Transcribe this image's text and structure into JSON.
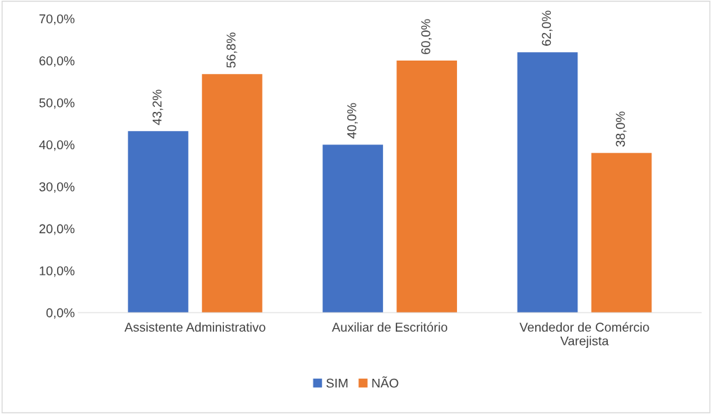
{
  "chart_data": {
    "type": "bar",
    "categories": [
      "Assistente Administrativo",
      "Auxiliar de Escritório",
      "Vendedor de Comércio\nVarejista"
    ],
    "series": [
      {
        "name": "SIM",
        "color": "#4472c4",
        "values": [
          43.2,
          40.0,
          62.0
        ],
        "value_labels": [
          "43,2%",
          "40,0%",
          "62,0%"
        ]
      },
      {
        "name": "NÃO",
        "color": "#ed7d31",
        "values": [
          56.8,
          60.0,
          38.0
        ],
        "value_labels": [
          "56,8%",
          "60,0%",
          "38,0%"
        ]
      }
    ],
    "ylim": [
      0,
      70
    ],
    "yticks": [
      {
        "value": 0,
        "label": "0,0%"
      },
      {
        "value": 10,
        "label": "10,0%"
      },
      {
        "value": 20,
        "label": "20,0%"
      },
      {
        "value": 30,
        "label": "30,0%"
      },
      {
        "value": 40,
        "label": "40,0%"
      },
      {
        "value": 50,
        "label": "50,0%"
      },
      {
        "value": 60,
        "label": "60,0%"
      },
      {
        "value": 70,
        "label": "70,0%"
      }
    ],
    "grid": false,
    "legend": "bottom"
  }
}
